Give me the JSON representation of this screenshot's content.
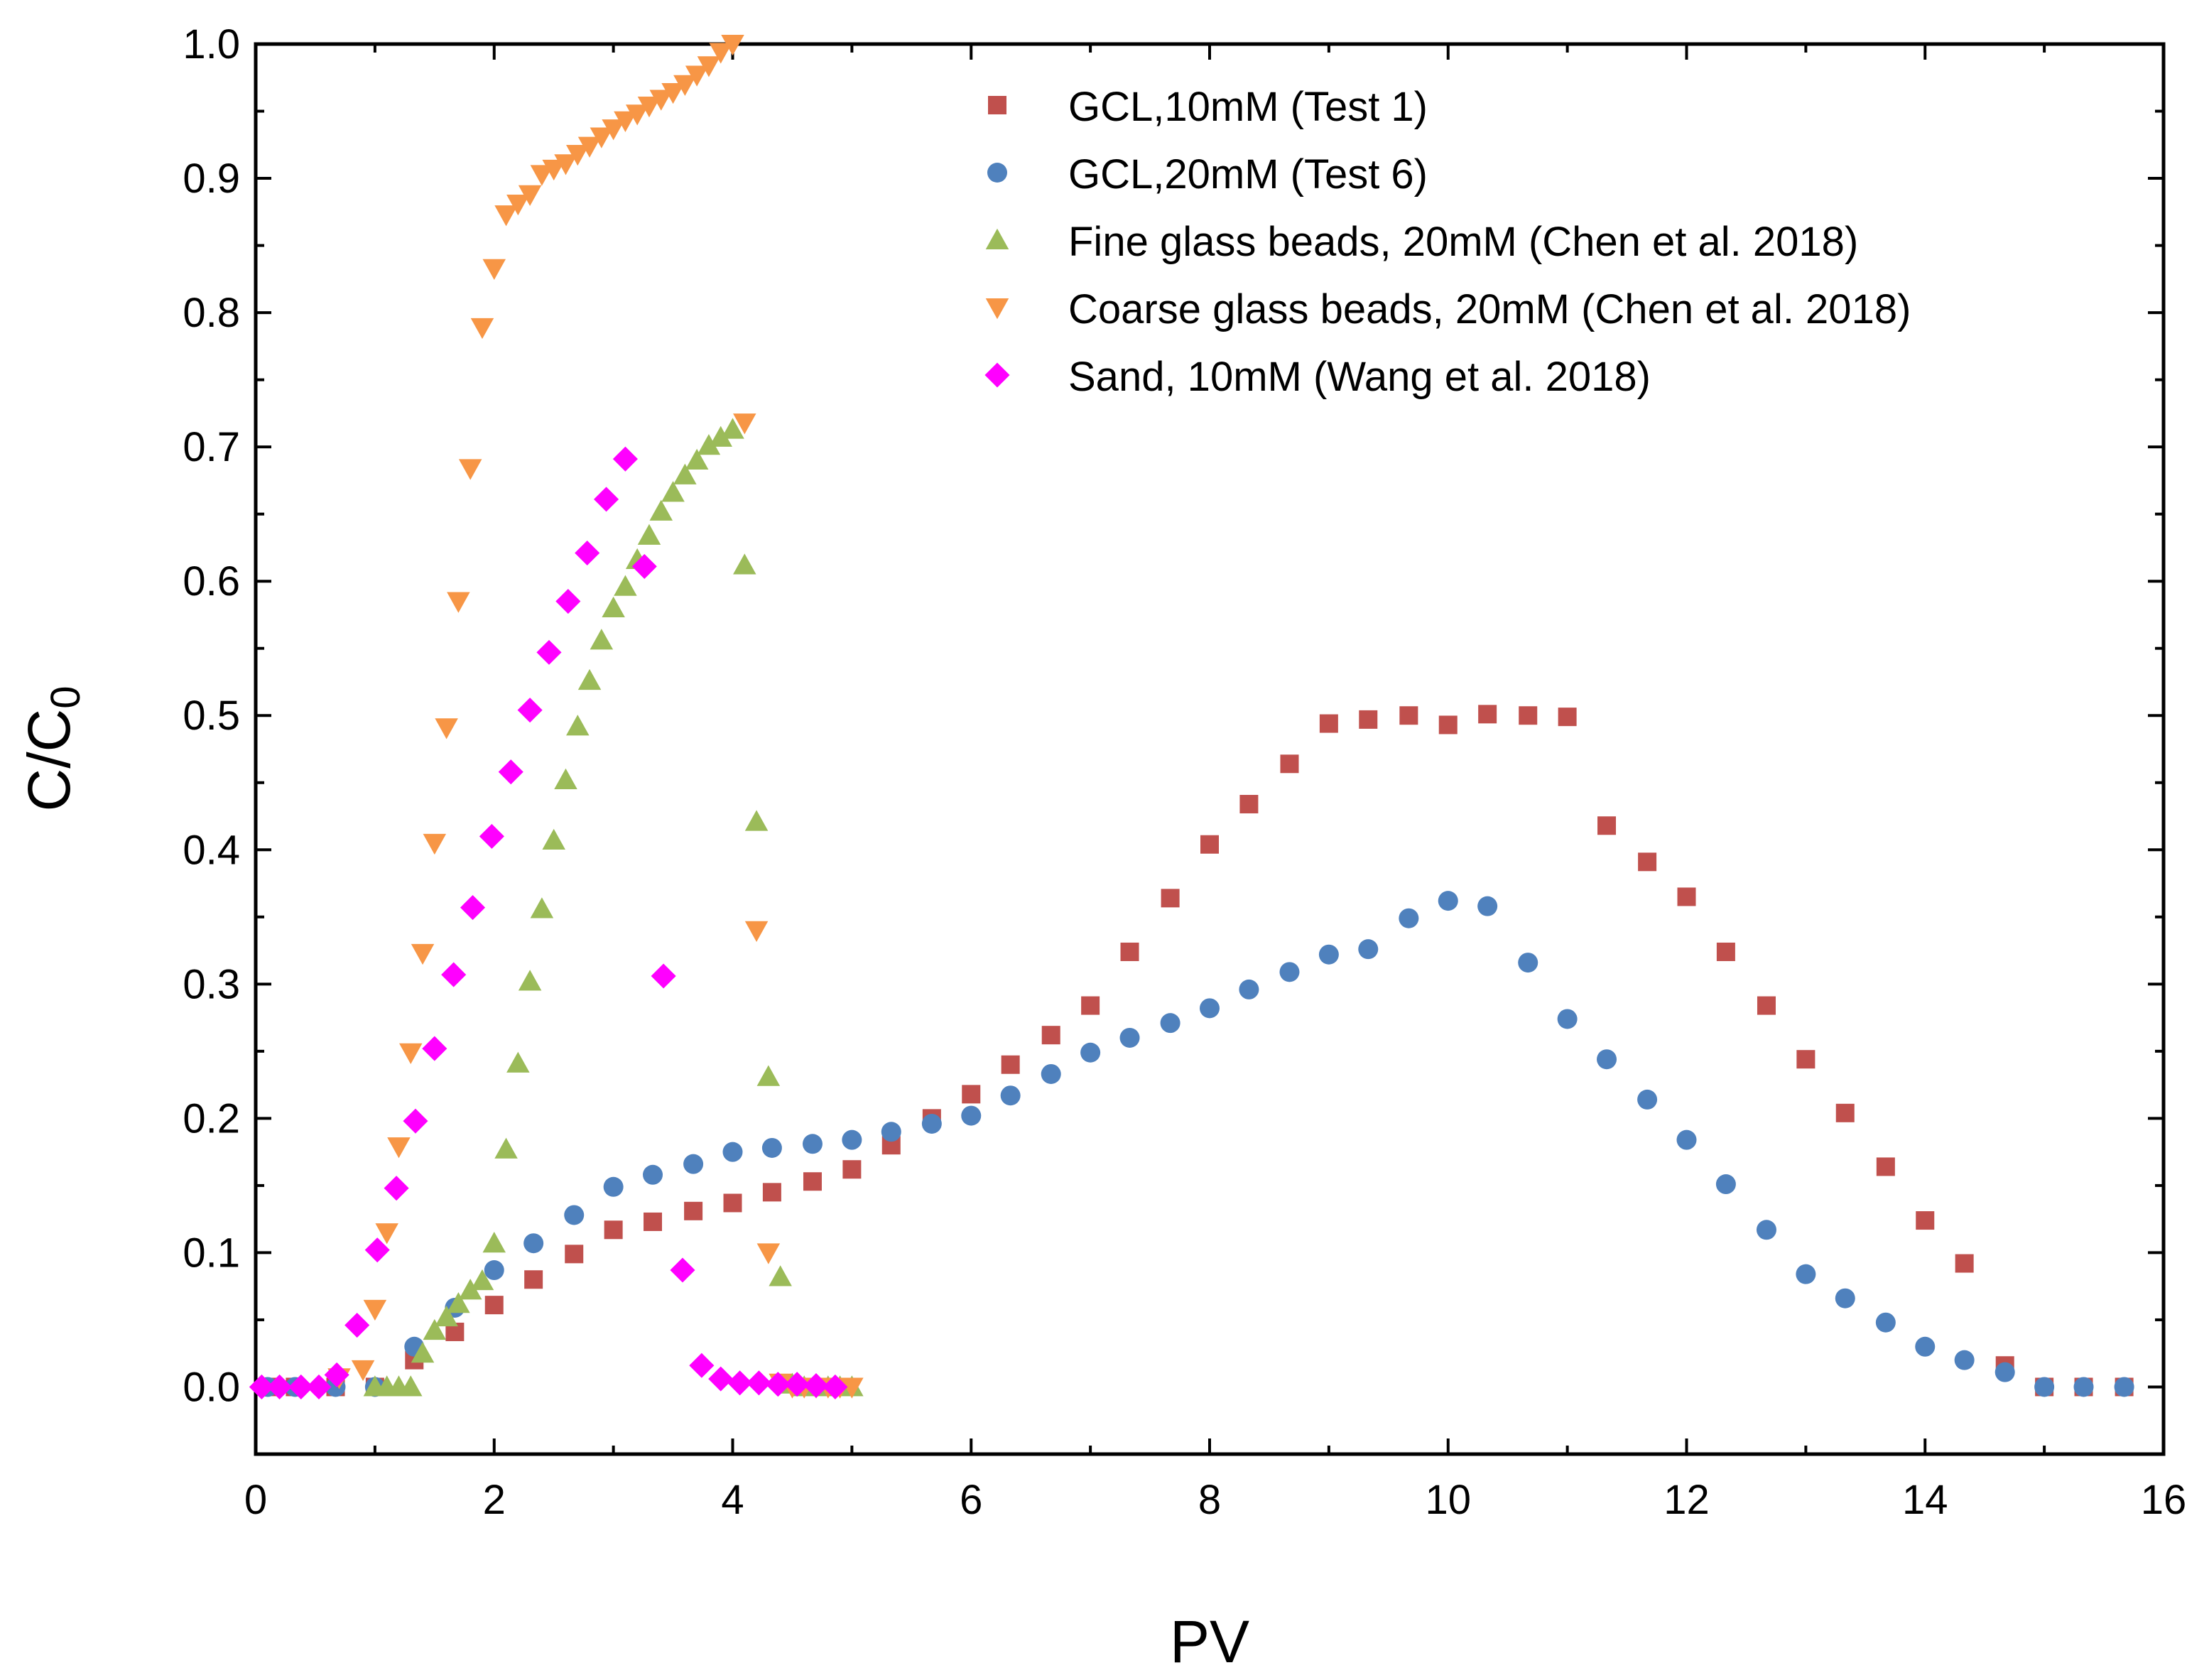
{
  "chart_data": {
    "type": "scatter",
    "xlabel": "PV",
    "ylabel": {
      "main": "C/C",
      "subscript": "0"
    },
    "xlim": [
      0,
      16
    ],
    "ylim": [
      -0.05,
      1.0
    ],
    "xticks": [
      0,
      2,
      4,
      6,
      8,
      10,
      12,
      14,
      16
    ],
    "xtick_labels": [
      "0",
      "2",
      "4",
      "6",
      "8",
      "10",
      "12",
      "14",
      "16"
    ],
    "yticks": [
      0.0,
      0.1,
      0.2,
      0.3,
      0.4,
      0.5,
      0.6,
      0.7,
      0.8,
      0.9,
      1.0
    ],
    "ytick_labels": [
      "0.0",
      "0.1",
      "0.2",
      "0.3",
      "0.4",
      "0.5",
      "0.6",
      "0.7",
      "0.8",
      "0.9",
      "1.0"
    ],
    "grid": false,
    "legend_position": "top-right",
    "series": [
      {
        "name": "GCL,10mM (Test 1)",
        "marker": "square",
        "color": "#C0504D",
        "points": [
          [
            0.1,
            0.0
          ],
          [
            0.33,
            0.0
          ],
          [
            0.67,
            0.0
          ],
          [
            1.0,
            0.0
          ],
          [
            1.33,
            0.02
          ],
          [
            1.67,
            0.041
          ],
          [
            2.0,
            0.061
          ],
          [
            2.33,
            0.08
          ],
          [
            2.67,
            0.099
          ],
          [
            3.0,
            0.117
          ],
          [
            3.33,
            0.123
          ],
          [
            3.67,
            0.131
          ],
          [
            4.0,
            0.137
          ],
          [
            4.33,
            0.145
          ],
          [
            4.67,
            0.153
          ],
          [
            5.0,
            0.162
          ],
          [
            5.33,
            0.18
          ],
          [
            5.67,
            0.2
          ],
          [
            6.0,
            0.218
          ],
          [
            6.33,
            0.24
          ],
          [
            6.67,
            0.262
          ],
          [
            7.0,
            0.284
          ],
          [
            7.33,
            0.324
          ],
          [
            7.67,
            0.364
          ],
          [
            8.0,
            0.404
          ],
          [
            8.33,
            0.434
          ],
          [
            8.67,
            0.464
          ],
          [
            9.0,
            0.494
          ],
          [
            9.33,
            0.497
          ],
          [
            9.67,
            0.5
          ],
          [
            10.0,
            0.493
          ],
          [
            10.33,
            0.501
          ],
          [
            10.67,
            0.5
          ],
          [
            11.0,
            0.499
          ],
          [
            11.33,
            0.418
          ],
          [
            11.67,
            0.391
          ],
          [
            12.0,
            0.365
          ],
          [
            12.33,
            0.324
          ],
          [
            12.67,
            0.284
          ],
          [
            13.0,
            0.244
          ],
          [
            13.33,
            0.204
          ],
          [
            13.67,
            0.164
          ],
          [
            14.0,
            0.124
          ],
          [
            14.33,
            0.092
          ],
          [
            14.67,
            0.016
          ],
          [
            15.0,
            0.0
          ],
          [
            15.33,
            0.0
          ],
          [
            15.67,
            0.0
          ]
        ]
      },
      {
        "name": "GCL,20mM (Test 6)",
        "marker": "circle",
        "color": "#4F81BD",
        "points": [
          [
            0.1,
            0.0
          ],
          [
            0.33,
            0.0
          ],
          [
            0.67,
            0.0
          ],
          [
            1.0,
            0.0
          ],
          [
            1.33,
            0.03
          ],
          [
            1.67,
            0.059
          ],
          [
            2.0,
            0.087
          ],
          [
            2.33,
            0.107
          ],
          [
            2.67,
            0.128
          ],
          [
            3.0,
            0.149
          ],
          [
            3.33,
            0.158
          ],
          [
            3.67,
            0.166
          ],
          [
            4.0,
            0.175
          ],
          [
            4.33,
            0.178
          ],
          [
            4.67,
            0.181
          ],
          [
            5.0,
            0.184
          ],
          [
            5.33,
            0.19
          ],
          [
            5.67,
            0.196
          ],
          [
            6.0,
            0.202
          ],
          [
            6.33,
            0.217
          ],
          [
            6.67,
            0.233
          ],
          [
            7.0,
            0.249
          ],
          [
            7.33,
            0.26
          ],
          [
            7.67,
            0.271
          ],
          [
            8.0,
            0.282
          ],
          [
            8.33,
            0.296
          ],
          [
            8.67,
            0.309
          ],
          [
            9.0,
            0.322
          ],
          [
            9.33,
            0.326
          ],
          [
            9.67,
            0.349
          ],
          [
            10.0,
            0.362
          ],
          [
            10.33,
            0.358
          ],
          [
            10.67,
            0.316
          ],
          [
            11.0,
            0.274
          ],
          [
            11.33,
            0.244
          ],
          [
            11.67,
            0.214
          ],
          [
            12.0,
            0.184
          ],
          [
            12.33,
            0.151
          ],
          [
            12.67,
            0.117
          ],
          [
            13.0,
            0.084
          ],
          [
            13.33,
            0.066
          ],
          [
            13.67,
            0.048
          ],
          [
            14.0,
            0.03
          ],
          [
            14.33,
            0.02
          ],
          [
            14.67,
            0.011
          ],
          [
            15.0,
            0.0
          ],
          [
            15.33,
            0.0
          ],
          [
            15.67,
            0.0
          ]
        ]
      },
      {
        "name": "Fine glass beads, 20mM (Chen et al. 2018)",
        "marker": "triangle-up",
        "color": "#9BBB59",
        "points": [
          [
            1.0,
            0.0
          ],
          [
            1.1,
            0.0
          ],
          [
            1.2,
            0.0
          ],
          [
            1.3,
            0.0
          ],
          [
            1.4,
            0.025
          ],
          [
            1.5,
            0.042
          ],
          [
            1.6,
            0.052
          ],
          [
            1.7,
            0.062
          ],
          [
            1.8,
            0.072
          ],
          [
            1.9,
            0.079
          ],
          [
            2.0,
            0.107
          ],
          [
            2.1,
            0.177
          ],
          [
            2.2,
            0.241
          ],
          [
            2.3,
            0.302
          ],
          [
            2.4,
            0.356
          ],
          [
            2.5,
            0.407
          ],
          [
            2.6,
            0.452
          ],
          [
            2.7,
            0.492
          ],
          [
            2.8,
            0.526
          ],
          [
            2.9,
            0.556
          ],
          [
            3.0,
            0.58
          ],
          [
            3.1,
            0.596
          ],
          [
            3.2,
            0.616
          ],
          [
            3.3,
            0.634
          ],
          [
            3.4,
            0.652
          ],
          [
            3.5,
            0.666
          ],
          [
            3.6,
            0.679
          ],
          [
            3.7,
            0.69
          ],
          [
            3.8,
            0.701
          ],
          [
            3.9,
            0.707
          ],
          [
            4.0,
            0.713
          ],
          [
            4.1,
            0.612
          ],
          [
            4.2,
            0.421
          ],
          [
            4.3,
            0.231
          ],
          [
            4.4,
            0.082
          ],
          [
            4.5,
            0.002
          ],
          [
            4.6,
            0.0
          ],
          [
            4.7,
            0.0
          ],
          [
            4.8,
            0.0
          ],
          [
            4.9,
            0.0
          ],
          [
            5.0,
            0.0
          ]
        ]
      },
      {
        "name": "Coarse glass beads, 20mM (Chen et al. 2018)",
        "marker": "triangle-down",
        "color": "#F79646",
        "points": [
          [
            0.7,
            0.007
          ],
          [
            0.9,
            0.013
          ],
          [
            1.0,
            0.058
          ],
          [
            1.1,
            0.115
          ],
          [
            1.2,
            0.179
          ],
          [
            1.3,
            0.249
          ],
          [
            1.4,
            0.323
          ],
          [
            1.5,
            0.405
          ],
          [
            1.6,
            0.491
          ],
          [
            1.7,
            0.585
          ],
          [
            1.8,
            0.684
          ],
          [
            1.9,
            0.789
          ],
          [
            2.0,
            0.833
          ],
          [
            2.1,
            0.873
          ],
          [
            2.2,
            0.881
          ],
          [
            2.3,
            0.888
          ],
          [
            2.4,
            0.903
          ],
          [
            2.5,
            0.907
          ],
          [
            2.6,
            0.911
          ],
          [
            2.7,
            0.918
          ],
          [
            2.8,
            0.924
          ],
          [
            2.9,
            0.931
          ],
          [
            3.0,
            0.937
          ],
          [
            3.1,
            0.943
          ],
          [
            3.2,
            0.948
          ],
          [
            3.3,
            0.954
          ],
          [
            3.4,
            0.959
          ],
          [
            3.5,
            0.964
          ],
          [
            3.6,
            0.97
          ],
          [
            3.7,
            0.977
          ],
          [
            3.8,
            0.984
          ],
          [
            3.9,
            0.994
          ],
          [
            4.0,
            1.0
          ],
          [
            4.1,
            0.718
          ],
          [
            4.2,
            0.34
          ],
          [
            4.3,
            0.1
          ],
          [
            4.4,
            0.003
          ],
          [
            4.5,
            0.0
          ],
          [
            4.6,
            0.0
          ],
          [
            4.7,
            0.0
          ],
          [
            4.8,
            0.0
          ],
          [
            4.9,
            0.0
          ],
          [
            5.0,
            0.0
          ]
        ]
      },
      {
        "name": "Sand, 10mM (Wang et al. 2018)",
        "marker": "diamond",
        "color": "#FF00FF",
        "points": [
          [
            0.05,
            0.0
          ],
          [
            0.2,
            0.0
          ],
          [
            0.38,
            0.0
          ],
          [
            0.53,
            0.0
          ],
          [
            0.68,
            0.009
          ],
          [
            0.85,
            0.046
          ],
          [
            1.02,
            0.102
          ],
          [
            1.18,
            0.148
          ],
          [
            1.34,
            0.198
          ],
          [
            1.5,
            0.252
          ],
          [
            1.66,
            0.307
          ],
          [
            1.82,
            0.357
          ],
          [
            1.98,
            0.41
          ],
          [
            2.14,
            0.458
          ],
          [
            2.3,
            0.504
          ],
          [
            2.46,
            0.547
          ],
          [
            2.62,
            0.585
          ],
          [
            2.78,
            0.621
          ],
          [
            2.94,
            0.661
          ],
          [
            3.1,
            0.691
          ],
          [
            3.26,
            0.611
          ],
          [
            3.42,
            0.306
          ],
          [
            3.58,
            0.087
          ],
          [
            3.74,
            0.016
          ],
          [
            3.9,
            0.006
          ],
          [
            4.06,
            0.003
          ],
          [
            4.22,
            0.003
          ],
          [
            4.38,
            0.002
          ],
          [
            4.54,
            0.002
          ],
          [
            4.7,
            0.001
          ],
          [
            4.86,
            0.0
          ]
        ]
      }
    ]
  }
}
